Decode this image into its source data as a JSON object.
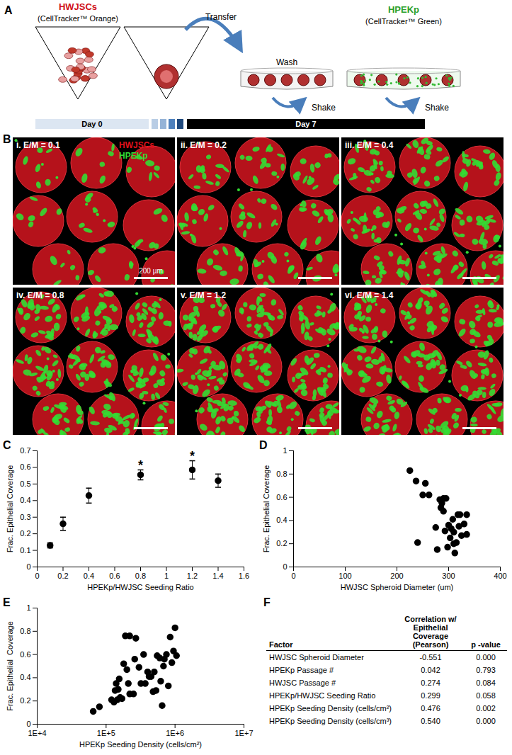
{
  "diagram": {
    "label": "A",
    "cells": "HWJSCs",
    "cells_stain": "(CellTracker™ Orange)",
    "transfer": "Transfer",
    "wash": "Wash",
    "shake": [
      "Shake",
      "Shake"
    ],
    "epithelial": "HPEKp",
    "epithelial_stain": "(CellTracker™ Green)",
    "timeline": [
      "Day 0",
      "Day 7"
    ]
  },
  "images": {
    "label": "B",
    "legend": [
      {
        "name": "HWJSCs",
        "color": "#e0101a"
      },
      {
        "name": "HPEKp",
        "color": "#33dd33"
      }
    ],
    "panels": [
      "i. E/M = 0.1",
      "ii. E/M = 0.2",
      "iii. E/M = 0.4",
      "iv. E/M = 0.8",
      "v. E/M = 1.2",
      "vi. E/M = 1.4"
    ],
    "scale_bar": "200 µm"
  },
  "chart_data": [
    {
      "panel": "C",
      "type": "scatter",
      "x": [
        0.1,
        0.2,
        0.4,
        0.8,
        1.2,
        1.4
      ],
      "values": [
        0.13,
        0.26,
        0.43,
        0.555,
        0.585,
        0.52
      ],
      "errors": [
        0.015,
        0.04,
        0.045,
        0.03,
        0.055,
        0.04
      ],
      "color": "#000000",
      "marker": "circle",
      "x_label": "HPEKp/HWJSC Seeding Ratio",
      "y_label": "Frac. Epithelial Coverage",
      "xlim": [
        0,
        1.6
      ],
      "xticks": [
        0,
        0.2,
        0.4,
        0.6,
        0.8,
        1,
        1.2,
        1.4,
        1.6
      ],
      "ylim": [
        0,
        0.7
      ],
      "yticks": [
        0,
        0.1,
        0.2,
        0.3,
        0.4,
        0.5,
        0.6,
        0.7
      ],
      "grid": false,
      "annotations": [
        {
          "x": 0.8,
          "y": 0.61,
          "text": "*"
        },
        {
          "x": 1.2,
          "y": 0.665,
          "text": "*"
        }
      ]
    },
    {
      "panel": "D",
      "type": "scatter",
      "x": [
        225,
        237,
        240,
        250,
        255,
        262,
        275,
        278,
        283,
        285,
        287,
        290,
        290,
        293,
        295,
        298,
        300,
        303,
        305,
        308,
        310,
        310,
        312,
        315,
        318,
        320,
        322,
        325,
        330,
        335,
        335
      ],
      "values": [
        0.83,
        0.74,
        0.21,
        0.62,
        0.72,
        0.62,
        0.34,
        0.15,
        0.58,
        0.51,
        0.55,
        0.48,
        0.59,
        0.31,
        0.59,
        0.17,
        0.36,
        0.25,
        0.33,
        0.41,
        0.3,
        0.2,
        0.12,
        0.21,
        0.45,
        0.35,
        0.45,
        0.27,
        0.37,
        0.45,
        0.28
      ],
      "color": "#000000",
      "marker": "circle",
      "x_label": "HWJSC Spheroid Diameter (um)",
      "y_label": "Frac. Epithelial Coverage",
      "xlim": [
        0,
        400
      ],
      "xticks": [
        0,
        100,
        200,
        300,
        400
      ],
      "ylim": [
        0,
        1
      ],
      "yticks": [
        0,
        0.2,
        0.4,
        0.6,
        0.8,
        1
      ],
      "grid": false
    },
    {
      "panel": "E",
      "type": "scatter",
      "log": "x",
      "x": [
        65000,
        80000,
        120000,
        130000,
        135000,
        140000,
        145000,
        150000,
        155000,
        160000,
        170000,
        180000,
        190000,
        200000,
        210000,
        220000,
        220000,
        250000,
        260000,
        270000,
        300000,
        320000,
        350000,
        370000,
        400000,
        420000,
        450000,
        480000,
        500000,
        530000,
        550000,
        600000,
        620000,
        650000,
        680000,
        700000,
        750000,
        800000,
        850000,
        900000,
        950000,
        1000000,
        1050000
      ],
      "values": [
        0.11,
        0.15,
        0.21,
        0.19,
        0.29,
        0.35,
        0.21,
        0.3,
        0.39,
        0.23,
        0.22,
        0.52,
        0.76,
        0.47,
        0.35,
        0.76,
        0.26,
        0.26,
        0.56,
        0.74,
        0.49,
        0.35,
        0.6,
        0.35,
        0.45,
        0.41,
        0.41,
        0.28,
        0.45,
        0.29,
        0.59,
        0.57,
        0.37,
        0.16,
        0.5,
        0.56,
        0.6,
        0.33,
        0.75,
        0.53,
        0.63,
        0.83,
        0.59
      ],
      "color": "#000000",
      "marker": "circle",
      "x_label": "HPEKp Seeding Density (cells/cm²)",
      "y_label": "Frac. Epithelial  Coverage",
      "xlim": [
        10000,
        10000000
      ],
      "xticks": [
        {
          "value": 10000,
          "label": "1E+4"
        },
        {
          "value": 100000,
          "label": "1E+5"
        },
        {
          "value": 1000000,
          "label": "1E+6"
        },
        {
          "value": 10000000,
          "label": "1E+7"
        }
      ],
      "ylim": [
        0,
        1
      ],
      "yticks": [
        0,
        0.2,
        0.4,
        0.6,
        0.8,
        1
      ],
      "grid": false
    }
  ],
  "table": {
    "label": "F",
    "columns": [
      "Factor",
      "Correlation w/ Epithelial Coverage (Pearson)",
      "p -value"
    ],
    "rows": [
      [
        "HWJSC Spheroid Diameter",
        "-0.551",
        "0.000"
      ],
      [
        "HPEKp Passage #",
        "0.042",
        "0.793"
      ],
      [
        "HWJSC Passage #",
        "0.274",
        "0.084"
      ],
      [
        "HPEKp/HWJSC Seeding Ratio",
        "0.299",
        "0.058"
      ],
      [
        "HPEKp Seeding Density (cells/cm²)",
        "0.476",
        "0.002"
      ],
      [
        "HPEKp Seeding Density (cells/cm³)",
        "0.540",
        "0.000"
      ]
    ]
  }
}
